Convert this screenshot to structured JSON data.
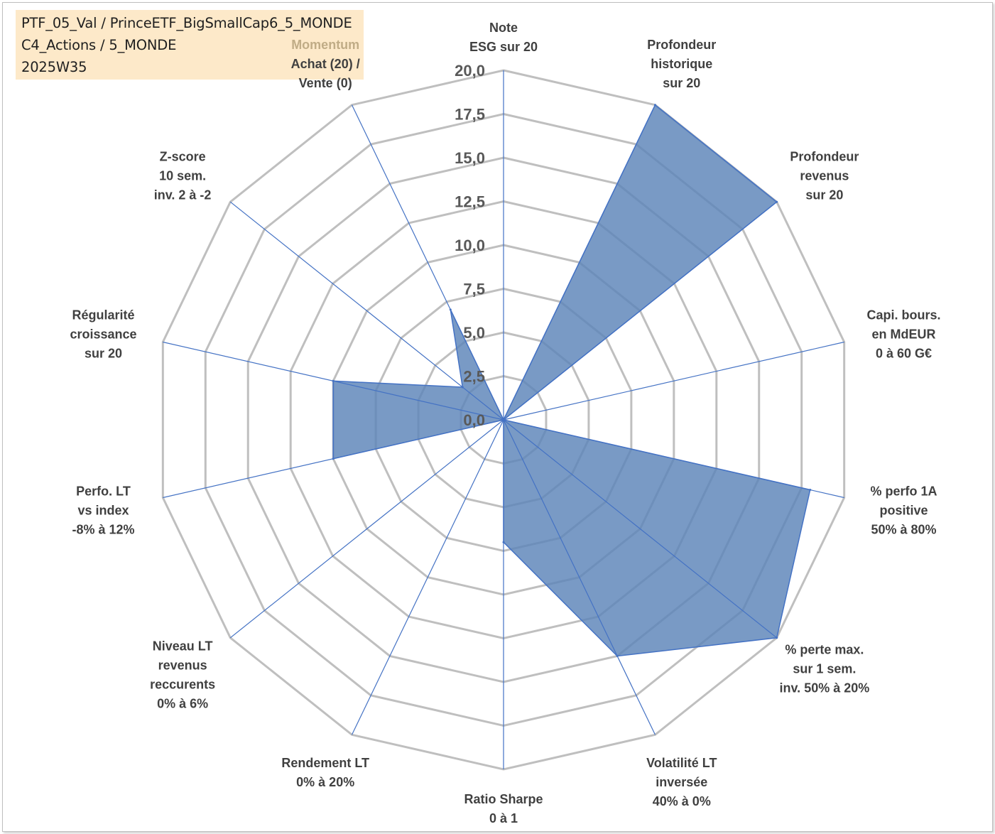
{
  "header": {
    "line1": "PTF_05_Val / PrinceETF_BigSmallCap6_5_MONDE",
    "line2": "C4_Actions / 5_MONDE",
    "line3": "2025W35"
  },
  "colors": {
    "grid": "#bfbfbf",
    "spoke": "#4472c4",
    "fill": "#5b84b8",
    "edge": "#4472c4",
    "momentum": "#c0ac86"
  },
  "chart_data": {
    "type": "radar",
    "rlim": [
      0,
      20
    ],
    "ticks": [
      "0,0",
      "2,5",
      "5,0",
      "7,5",
      "10,0",
      "12,5",
      "15,0",
      "17,5",
      "20,0"
    ],
    "grid": true,
    "categories": [
      {
        "lines": [
          "Note",
          "ESG sur 20"
        ]
      },
      {
        "lines": [
          "Profondeur",
          "historique",
          "sur 20"
        ]
      },
      {
        "lines": [
          "Profondeur",
          "revenus",
          "sur 20"
        ]
      },
      {
        "lines": [
          "Capi. bours.",
          "en MdEUR",
          "0 à 60 G€"
        ]
      },
      {
        "lines": [
          "% perfo 1A",
          "positive",
          "50% à 80%"
        ]
      },
      {
        "lines": [
          "% perte max.",
          "sur 1 sem.",
          "inv. 50% à 20%"
        ]
      },
      {
        "lines": [
          "Volatilité LT",
          "inversée",
          "40% à 0%"
        ]
      },
      {
        "lines": [
          "Ratio Sharpe",
          "0 à 1"
        ]
      },
      {
        "lines": [
          "Rendement LT",
          "0% à 20%"
        ]
      },
      {
        "lines": [
          "Niveau LT",
          "revenus",
          "reccurents",
          "0% à 6%"
        ]
      },
      {
        "lines": [
          "Perfo. LT",
          "vs index",
          "-8% à 12%"
        ]
      },
      {
        "lines": [
          "Régularité",
          "croissance",
          "sur 20"
        ]
      },
      {
        "lines": [
          "Z-score",
          "10 sem.",
          "inv. 2 à -2"
        ]
      },
      {
        "lines": [
          "Momentum",
          "Achat (20) /",
          "Vente (0)"
        ]
      }
    ],
    "series": [
      {
        "values": [
          0,
          20,
          20,
          0,
          18,
          20,
          15,
          7,
          0,
          0,
          10,
          10,
          3,
          7
        ]
      }
    ]
  }
}
